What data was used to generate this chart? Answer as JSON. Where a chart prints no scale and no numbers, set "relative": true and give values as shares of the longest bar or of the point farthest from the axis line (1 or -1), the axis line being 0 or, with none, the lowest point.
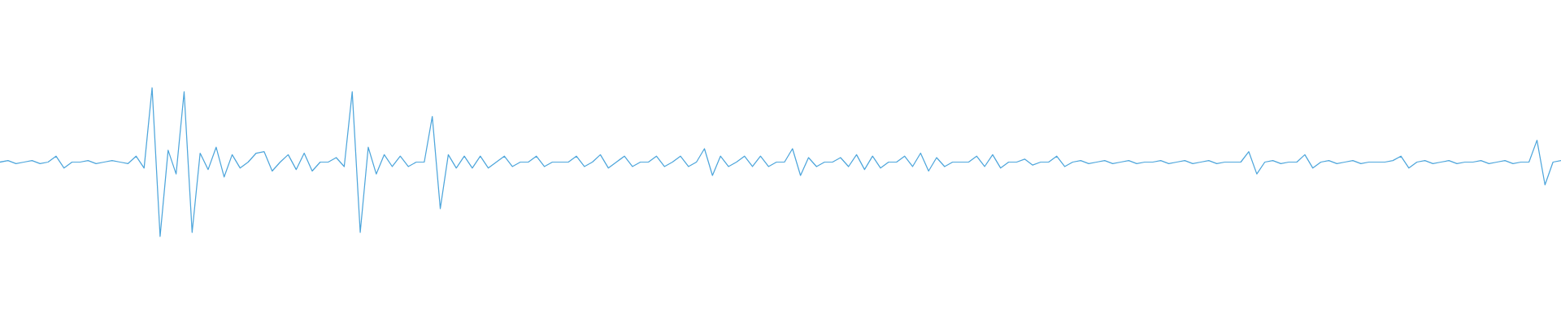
{
  "chart_data": {
    "type": "line",
    "relative": true,
    "grid": false,
    "marker": "none",
    "line_style": "solid",
    "categories": [
      null,
      null,
      null,
      null,
      null,
      null,
      null,
      null,
      null,
      null,
      null,
      null,
      null,
      null,
      null,
      null,
      null,
      null,
      null,
      null,
      null,
      null,
      null,
      null,
      null,
      null,
      null,
      null,
      null,
      null,
      null,
      null,
      null,
      null,
      null,
      null,
      null,
      null,
      null,
      null,
      null,
      null,
      null,
      null,
      null,
      null,
      null,
      null,
      null,
      null,
      null,
      null,
      null,
      null,
      null,
      null,
      null,
      null,
      null,
      null,
      null,
      null,
      null,
      null,
      null,
      null,
      null,
      null,
      null,
      null,
      null,
      null,
      null,
      null,
      null,
      null,
      null,
      null,
      null,
      null,
      null,
      null,
      null,
      null,
      null,
      null,
      null,
      null,
      null,
      null,
      null,
      null,
      null,
      null,
      null,
      null,
      null,
      null,
      null,
      null,
      null,
      null,
      null,
      null,
      null,
      null,
      null,
      null,
      null,
      null,
      null,
      null,
      null,
      null,
      null,
      null,
      null,
      null,
      null,
      null,
      null,
      null,
      null,
      null,
      null,
      null,
      null,
      null,
      null,
      null,
      null,
      null,
      null,
      null,
      null,
      null,
      null,
      null,
      null,
      null,
      null,
      null,
      null,
      null,
      null,
      null,
      null,
      null,
      null,
      null,
      null,
      null,
      null,
      null,
      null,
      null,
      null,
      null,
      null,
      null,
      null,
      null,
      null,
      null,
      null,
      null,
      null,
      null,
      null,
      null,
      null,
      null,
      null,
      null,
      null,
      null,
      null,
      null,
      null,
      null,
      null,
      null,
      null,
      null,
      null,
      null,
      null,
      null,
      null,
      null,
      null,
      null,
      null,
      null,
      null,
      null
    ],
    "series": [
      {
        "color": "#4ea6dc",
        "values": [
          0.5,
          0.51,
          0.49,
          0.5,
          0.51,
          0.49,
          0.5,
          0.54,
          0.46,
          0.5,
          0.5,
          0.51,
          0.49,
          0.5,
          0.51,
          0.5,
          0.49,
          0.54,
          0.46,
          1,
          0,
          0.58,
          0.42,
          0.973,
          0.027,
          0.56,
          0.45,
          0.6,
          0.4,
          0.55,
          0.46,
          0.5,
          0.56,
          0.57,
          0.44,
          0.5,
          0.55,
          0.45,
          0.56,
          0.44,
          0.5,
          0.5,
          0.53,
          0.47,
          0.973,
          0.027,
          0.6,
          0.42,
          0.55,
          0.47,
          0.54,
          0.47,
          0.5,
          0.5,
          0.807,
          0.187,
          0.55,
          0.46,
          0.54,
          0.46,
          0.54,
          0.46,
          0.5,
          0.54,
          0.47,
          0.5,
          0.5,
          0.54,
          0.47,
          0.5,
          0.5,
          0.5,
          0.54,
          0.47,
          0.5,
          0.55,
          0.46,
          0.5,
          0.54,
          0.47,
          0.5,
          0.5,
          0.54,
          0.47,
          0.5,
          0.54,
          0.47,
          0.5,
          0.59,
          0.41,
          0.54,
          0.47,
          0.5,
          0.54,
          0.47,
          0.54,
          0.47,
          0.5,
          0.5,
          0.59,
          0.41,
          0.53,
          0.47,
          0.5,
          0.5,
          0.53,
          0.47,
          0.55,
          0.45,
          0.54,
          0.46,
          0.5,
          0.5,
          0.54,
          0.47,
          0.56,
          0.44,
          0.53,
          0.47,
          0.5,
          0.5,
          0.5,
          0.54,
          0.47,
          0.55,
          0.46,
          0.5,
          0.5,
          0.52,
          0.48,
          0.5,
          0.5,
          0.54,
          0.47,
          0.5,
          0.51,
          0.49,
          0.5,
          0.51,
          0.49,
          0.5,
          0.51,
          0.49,
          0.5,
          0.5,
          0.51,
          0.49,
          0.5,
          0.51,
          0.49,
          0.5,
          0.51,
          0.49,
          0.5,
          0.5,
          0.5,
          0.57,
          0.42,
          0.5,
          0.51,
          0.49,
          0.5,
          0.5,
          0.55,
          0.46,
          0.5,
          0.51,
          0.49,
          0.5,
          0.51,
          0.49,
          0.5,
          0.5,
          0.5,
          0.51,
          0.54,
          0.46,
          0.5,
          0.51,
          0.49,
          0.5,
          0.51,
          0.49,
          0.5,
          0.5,
          0.51,
          0.49,
          0.5,
          0.51,
          0.49,
          0.5,
          0.5,
          0.647,
          0.347,
          0.5,
          0.51
        ]
      }
    ]
  }
}
